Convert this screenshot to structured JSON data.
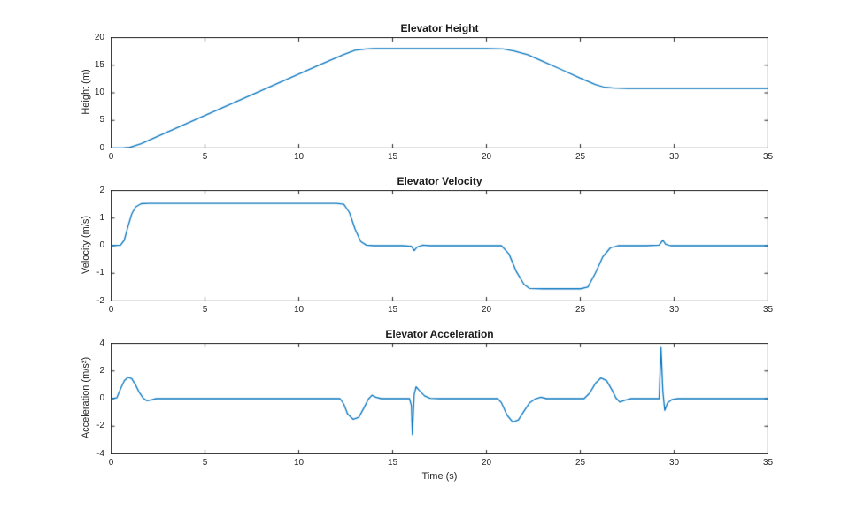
{
  "figure": {
    "background": "#ffffff",
    "line_color": "#0072BD",
    "axis_color": "#262626",
    "xlabel": "Time (s)"
  },
  "chart_data": [
    {
      "type": "line",
      "title": "Elevator Height",
      "xlabel": "",
      "ylabel": "Height (m)",
      "xlim": [
        0,
        35
      ],
      "ylim": [
        0,
        20
      ],
      "xticks": [
        0,
        5,
        10,
        15,
        20,
        25,
        30,
        35
      ],
      "yticks": [
        0,
        5,
        10,
        15,
        20
      ],
      "grid": false,
      "legend": null,
      "series": [
        {
          "name": "height",
          "points": [
            [
              0,
              0
            ],
            [
              0.6,
              0
            ],
            [
              1.0,
              0.15
            ],
            [
              1.6,
              0.78
            ],
            [
              3,
              2.9
            ],
            [
              5,
              5.9
            ],
            [
              7,
              8.9
            ],
            [
              9,
              11.9
            ],
            [
              11,
              14.9
            ],
            [
              12.4,
              16.95
            ],
            [
              13.0,
              17.7
            ],
            [
              13.6,
              17.95
            ],
            [
              14,
              18
            ],
            [
              16,
              18
            ],
            [
              18,
              18
            ],
            [
              20,
              18
            ],
            [
              20.9,
              17.95
            ],
            [
              21.5,
              17.55
            ],
            [
              22.2,
              16.9
            ],
            [
              23,
              15.7
            ],
            [
              24,
              14.2
            ],
            [
              25,
              12.65
            ],
            [
              25.8,
              11.5
            ],
            [
              26.3,
              11.0
            ],
            [
              26.8,
              10.85
            ],
            [
              27.5,
              10.8
            ],
            [
              30,
              10.8
            ],
            [
              33,
              10.8
            ],
            [
              35,
              10.8
            ]
          ]
        }
      ]
    },
    {
      "type": "line",
      "title": "Elevator Velocity",
      "xlabel": "",
      "ylabel": "Velocity (m/s)",
      "xlim": [
        0,
        35
      ],
      "ylim": [
        -2,
        2
      ],
      "xticks": [
        0,
        5,
        10,
        15,
        20,
        25,
        30,
        35
      ],
      "yticks": [
        -2,
        -1,
        0,
        1,
        2
      ],
      "grid": false,
      "legend": null,
      "series": [
        {
          "name": "velocity",
          "points": [
            [
              0,
              0
            ],
            [
              0.5,
              0.02
            ],
            [
              0.7,
              0.2
            ],
            [
              0.9,
              0.7
            ],
            [
              1.1,
              1.15
            ],
            [
              1.3,
              1.4
            ],
            [
              1.6,
              1.52
            ],
            [
              2,
              1.53
            ],
            [
              4,
              1.53
            ],
            [
              6,
              1.53
            ],
            [
              8,
              1.53
            ],
            [
              10,
              1.53
            ],
            [
              12,
              1.53
            ],
            [
              12.4,
              1.5
            ],
            [
              12.7,
              1.2
            ],
            [
              13.0,
              0.6
            ],
            [
              13.3,
              0.15
            ],
            [
              13.6,
              0.02
            ],
            [
              14,
              0
            ],
            [
              15.5,
              0
            ],
            [
              16.0,
              -0.02
            ],
            [
              16.15,
              -0.18
            ],
            [
              16.3,
              -0.05
            ],
            [
              16.6,
              0.02
            ],
            [
              17,
              0
            ],
            [
              19,
              0
            ],
            [
              20.8,
              0
            ],
            [
              21.2,
              -0.3
            ],
            [
              21.6,
              -0.95
            ],
            [
              22.0,
              -1.4
            ],
            [
              22.3,
              -1.55
            ],
            [
              23,
              -1.56
            ],
            [
              24,
              -1.56
            ],
            [
              25,
              -1.56
            ],
            [
              25.4,
              -1.5
            ],
            [
              25.8,
              -1.0
            ],
            [
              26.2,
              -0.4
            ],
            [
              26.6,
              -0.08
            ],
            [
              27,
              0
            ],
            [
              28.5,
              0
            ],
            [
              29.2,
              0.02
            ],
            [
              29.4,
              0.2
            ],
            [
              29.55,
              0.05
            ],
            [
              29.8,
              0
            ],
            [
              31,
              0
            ],
            [
              33,
              0
            ],
            [
              35,
              0
            ]
          ]
        }
      ]
    },
    {
      "type": "line",
      "title": "Elevator Acceleration",
      "xlabel": "Time (s)",
      "ylabel": "Acceleration (m/s²)",
      "xlim": [
        0,
        35
      ],
      "ylim": [
        -4,
        4
      ],
      "xticks": [
        0,
        5,
        10,
        15,
        20,
        25,
        30,
        35
      ],
      "yticks": [
        -4,
        -2,
        0,
        2,
        4
      ],
      "grid": false,
      "legend": null,
      "series": [
        {
          "name": "acceleration",
          "points": [
            [
              0,
              0
            ],
            [
              0.3,
              0.05
            ],
            [
              0.5,
              0.7
            ],
            [
              0.7,
              1.3
            ],
            [
              0.9,
              1.55
            ],
            [
              1.1,
              1.45
            ],
            [
              1.3,
              1.0
            ],
            [
              1.5,
              0.45
            ],
            [
              1.7,
              0.05
            ],
            [
              1.9,
              -0.15
            ],
            [
              2.1,
              -0.1
            ],
            [
              2.4,
              0
            ],
            [
              4,
              0
            ],
            [
              8,
              0
            ],
            [
              11,
              0
            ],
            [
              12.2,
              0
            ],
            [
              12.4,
              -0.4
            ],
            [
              12.6,
              -1.1
            ],
            [
              12.9,
              -1.5
            ],
            [
              13.2,
              -1.35
            ],
            [
              13.5,
              -0.6
            ],
            [
              13.7,
              -0.05
            ],
            [
              13.9,
              0.25
            ],
            [
              14.1,
              0.1
            ],
            [
              14.4,
              0
            ],
            [
              15,
              0
            ],
            [
              15.9,
              0
            ],
            [
              16.0,
              -0.5
            ],
            [
              16.05,
              -2.6
            ],
            [
              16.15,
              0.3
            ],
            [
              16.25,
              0.85
            ],
            [
              16.45,
              0.55
            ],
            [
              16.7,
              0.2
            ],
            [
              17,
              0.02
            ],
            [
              17.5,
              0
            ],
            [
              19,
              0
            ],
            [
              20.6,
              0
            ],
            [
              20.8,
              -0.3
            ],
            [
              21.1,
              -1.2
            ],
            [
              21.4,
              -1.7
            ],
            [
              21.7,
              -1.55
            ],
            [
              22.0,
              -0.9
            ],
            [
              22.3,
              -0.3
            ],
            [
              22.6,
              -0.02
            ],
            [
              22.9,
              0.1
            ],
            [
              23.2,
              0
            ],
            [
              24,
              0
            ],
            [
              25.2,
              0
            ],
            [
              25.5,
              0.4
            ],
            [
              25.8,
              1.1
            ],
            [
              26.1,
              1.5
            ],
            [
              26.4,
              1.3
            ],
            [
              26.7,
              0.6
            ],
            [
              26.9,
              0.05
            ],
            [
              27.1,
              -0.25
            ],
            [
              27.4,
              -0.1
            ],
            [
              27.7,
              0
            ],
            [
              28.5,
              0
            ],
            [
              29.2,
              0
            ],
            [
              29.3,
              3.7
            ],
            [
              29.4,
              0.5
            ],
            [
              29.5,
              -0.85
            ],
            [
              29.65,
              -0.3
            ],
            [
              29.9,
              -0.05
            ],
            [
              30.2,
              0
            ],
            [
              32,
              0
            ],
            [
              35,
              0
            ]
          ]
        }
      ]
    }
  ]
}
